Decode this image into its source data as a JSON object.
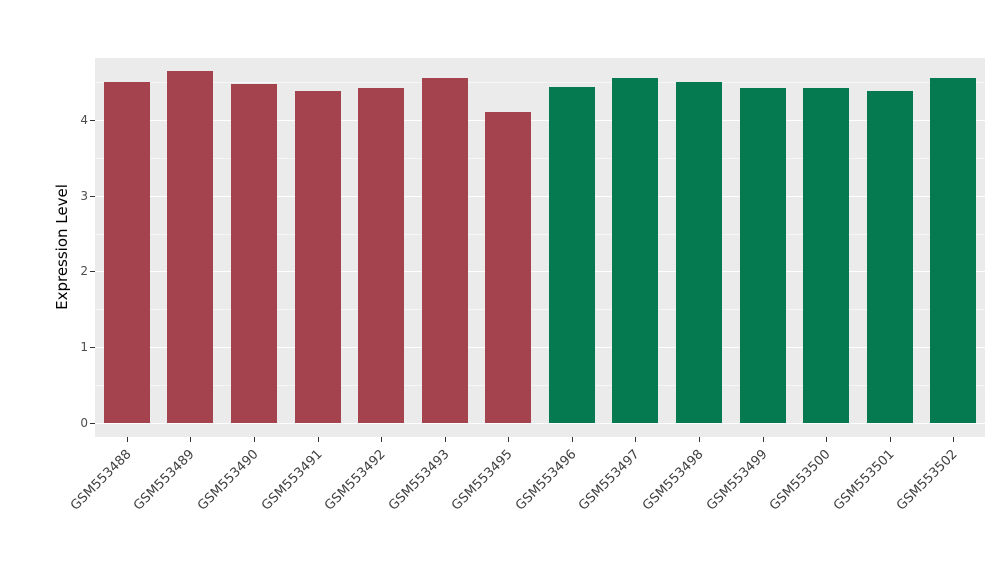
{
  "chart_data": {
    "type": "bar",
    "title": "",
    "xlabel": "",
    "ylabel": "Expression Level",
    "categories": [
      "GSM553488",
      "GSM553489",
      "GSM553490",
      "GSM553491",
      "GSM553492",
      "GSM553493",
      "GSM553495",
      "GSM553496",
      "GSM553497",
      "GSM553498",
      "GSM553499",
      "GSM553500",
      "GSM553501",
      "GSM553502"
    ],
    "values": [
      4.5,
      4.65,
      4.48,
      4.38,
      4.43,
      4.55,
      4.1,
      4.44,
      4.56,
      4.5,
      4.42,
      4.43,
      4.38,
      4.56
    ],
    "bar_colors": [
      "#A4434D",
      "#A4434D",
      "#A4434D",
      "#A4434D",
      "#A4434D",
      "#A4434D",
      "#A4434D",
      "#057A51",
      "#057A51",
      "#057A51",
      "#057A51",
      "#057A51",
      "#057A51",
      "#057A51"
    ],
    "group_colors": {
      "left_group": "#A4434D",
      "right_group": "#057A51"
    },
    "axis": {
      "ylim": [
        0,
        4.82
      ],
      "y_expand": 0.19,
      "yticks": [
        0,
        1,
        2,
        3,
        4
      ],
      "yticks_minor": [
        0.5,
        1.5,
        2.5,
        3.5,
        4.5
      ]
    },
    "legend": false,
    "grid": true,
    "panel_background": "#EBEBEB",
    "grid_color": "#FFFFFF",
    "tick_color": "#333333",
    "axis_text_color": "#4D4D4D"
  }
}
